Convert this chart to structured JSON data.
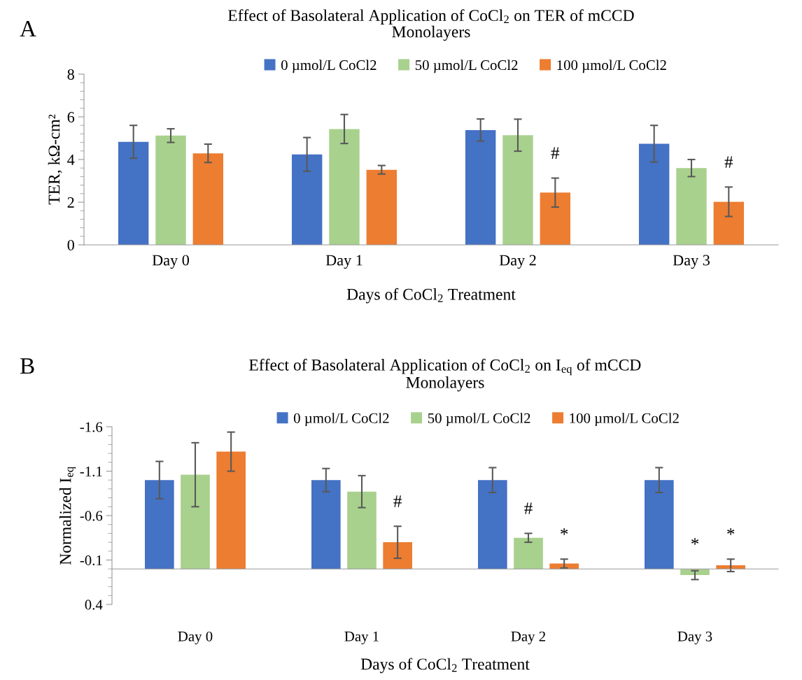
{
  "chart_data": [
    {
      "type": "bar",
      "title": "Effect of Basolateral Application of CoCl$_{2}$ on TER of mCCD\nMonolayers",
      "xlabel": "Days of CoCl$_{2}$ Treatment",
      "ylabel": "TER, kΩ-cm²",
      "categories": [
        "Day 0",
        "Day 1",
        "Day 2",
        "Day 3"
      ],
      "series": [
        {
          "name": "0 µmol/L CoCl2",
          "color": "#4472c4",
          "values": [
            4.83,
            4.24,
            5.38,
            4.74
          ],
          "errors": [
            0.77,
            0.79,
            0.52,
            0.86
          ]
        },
        {
          "name": "50 µmol/L CoCl2",
          "color": "#a9d18e",
          "values": [
            5.12,
            5.43,
            5.14,
            3.6
          ],
          "errors": [
            0.32,
            0.68,
            0.75,
            0.4
          ]
        },
        {
          "name": "100 µmol/L CoCl2",
          "color": "#ed7d31",
          "values": [
            4.29,
            3.52,
            2.45,
            2.02
          ],
          "errors": [
            0.43,
            0.2,
            0.68,
            0.69
          ],
          "value_labels": [
            null,
            null,
            "#",
            "#"
          ]
        }
      ],
      "ylim": [
        0,
        8
      ],
      "yticks": [
        0,
        2,
        4,
        6,
        8
      ],
      "legend": "top",
      "grid": false,
      "annotations": [
        "A"
      ]
    },
    {
      "type": "bar",
      "title": "Effect of Basolateral Application of CoCl$_{2}$ on I$_{eq}$ of mCCD\nMonolayers",
      "xlabel": "Days of CoCl$_{2}$ Treatment",
      "ylabel": "Normalized I$_{eq}$",
      "categories": [
        "Day 0",
        "Day 1",
        "Day 2",
        "Day 3"
      ],
      "series": [
        {
          "name": "0 µmol/L CoCl2",
          "color": "#4472c4",
          "values": [
            -1.0,
            -1.0,
            -1.0,
            -1.0
          ],
          "errors": [
            0.21,
            0.13,
            0.14,
            0.14
          ]
        },
        {
          "name": "50 µmol/L CoCl2",
          "color": "#a9d18e",
          "values": [
            -1.06,
            -0.87,
            -0.35,
            0.07
          ],
          "errors": [
            0.36,
            0.18,
            0.05,
            0.05
          ],
          "value_labels": [
            null,
            null,
            "#",
            "*"
          ]
        },
        {
          "name": "100 µmol/L CoCl2",
          "color": "#ed7d31",
          "values": [
            -1.32,
            -0.3,
            -0.06,
            -0.04
          ],
          "errors": [
            0.22,
            0.18,
            0.05,
            0.07
          ],
          "value_labels": [
            null,
            "#",
            "*",
            "*"
          ]
        }
      ],
      "ylim": [
        0.4,
        -1.6
      ],
      "yticks": [
        -1.6,
        -1.1,
        -0.6,
        -0.1,
        0.4
      ],
      "legend": "top",
      "grid": false,
      "annotations": [
        "B"
      ]
    }
  ]
}
